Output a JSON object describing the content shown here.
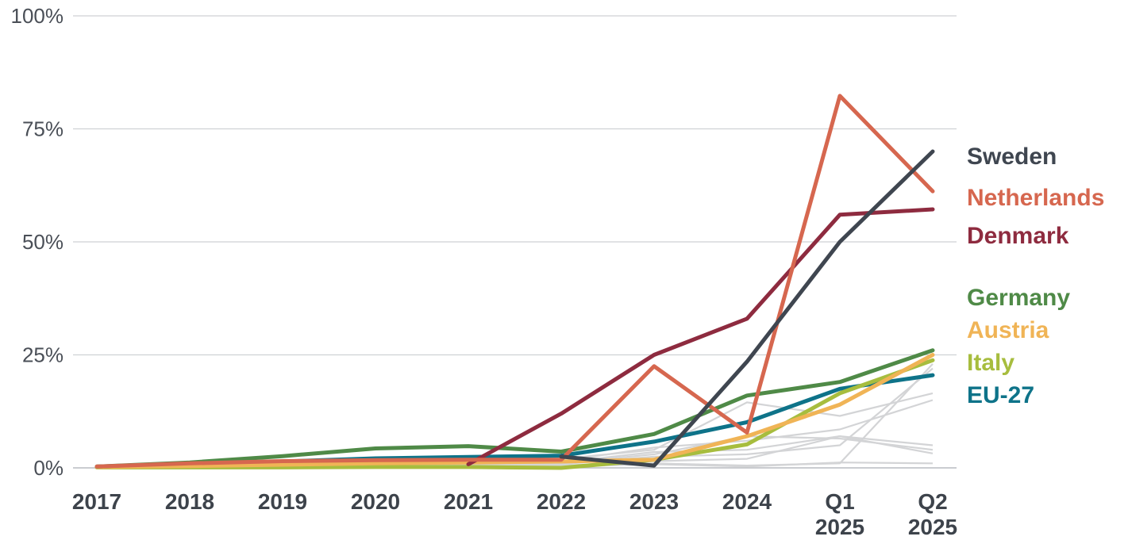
{
  "chart_data": {
    "type": "line",
    "x": [
      "2017",
      "2018",
      "2019",
      "2020",
      "2021",
      "2022",
      "2023",
      "2024",
      "Q1\n2025",
      "Q2\n2025"
    ],
    "ylim": [
      0,
      100
    ],
    "yticks": [
      "0%",
      "25%",
      "50%",
      "75%",
      "100%"
    ],
    "ytick_values": [
      0,
      25,
      50,
      75,
      100
    ],
    "grid": true,
    "legend": "right",
    "series": [
      {
        "name": "Sweden",
        "color": "#3f4650",
        "values": [
          null,
          null,
          null,
          null,
          null,
          2.5,
          0.5,
          23.5,
          50,
          70
        ]
      },
      {
        "name": "Netherlands",
        "color": "#d6674f",
        "values": [
          0.3,
          1.0,
          1.5,
          1.7,
          1.8,
          1.8,
          22.5,
          7.8,
          82.3,
          61.2
        ]
      },
      {
        "name": "Denmark",
        "color": "#8e2b3f",
        "values": [
          null,
          null,
          null,
          null,
          0.8,
          12,
          25,
          33,
          56,
          57.2
        ]
      },
      {
        "name": "Germany",
        "color": "#4f8a47",
        "values": [
          0.3,
          1.2,
          2.6,
          4.3,
          4.8,
          3.6,
          7.5,
          16,
          19,
          26
        ]
      },
      {
        "name": "Austria",
        "color": "#f0b456",
        "values": [
          0.2,
          0.4,
          0.7,
          1.0,
          1.2,
          1.4,
          1.8,
          7.0,
          14,
          25
        ]
      },
      {
        "name": "Italy",
        "color": "#a7bd3e",
        "values": [
          0.1,
          0.1,
          0.1,
          0.2,
          0.2,
          0.0,
          1.8,
          5.2,
          16.5,
          23.8
        ]
      },
      {
        "name": "EU-27",
        "color": "#0e7389",
        "values": [
          0.2,
          0.6,
          1.4,
          2.1,
          2.4,
          2.7,
          5.8,
          10.1,
          17.5,
          20.5
        ]
      }
    ],
    "background_series": [
      [
        0.1,
        0.3,
        0.5,
        0.8,
        1.5,
        2.0,
        4.0,
        14.5,
        11.5,
        16.5
      ],
      [
        0.1,
        0.2,
        0.4,
        0.6,
        1.0,
        1.5,
        4.5,
        6.0,
        8.5,
        15.0
      ],
      [
        0.1,
        0.2,
        0.3,
        0.5,
        0.8,
        1.2,
        3.5,
        4.0,
        7.0,
        3.2
      ],
      [
        0.0,
        0.1,
        0.2,
        0.3,
        0.5,
        0.8,
        2.5,
        3.0,
        5.0,
        22.0
      ],
      [
        0.0,
        0.1,
        0.2,
        0.3,
        0.4,
        0.5,
        1.5,
        2.0,
        7.0,
        5.0
      ],
      [
        0.0,
        0.1,
        0.1,
        0.2,
        0.3,
        0.4,
        1.0,
        0.5,
        1.0,
        23.0
      ],
      [
        0.0,
        0.0,
        0.1,
        0.2,
        0.2,
        0.3,
        0.8,
        0.3,
        1.2,
        1.0
      ],
      [
        0.0,
        0.1,
        0.2,
        0.3,
        0.5,
        1.0,
        3.0,
        7.0,
        6.5,
        4.0
      ]
    ]
  }
}
